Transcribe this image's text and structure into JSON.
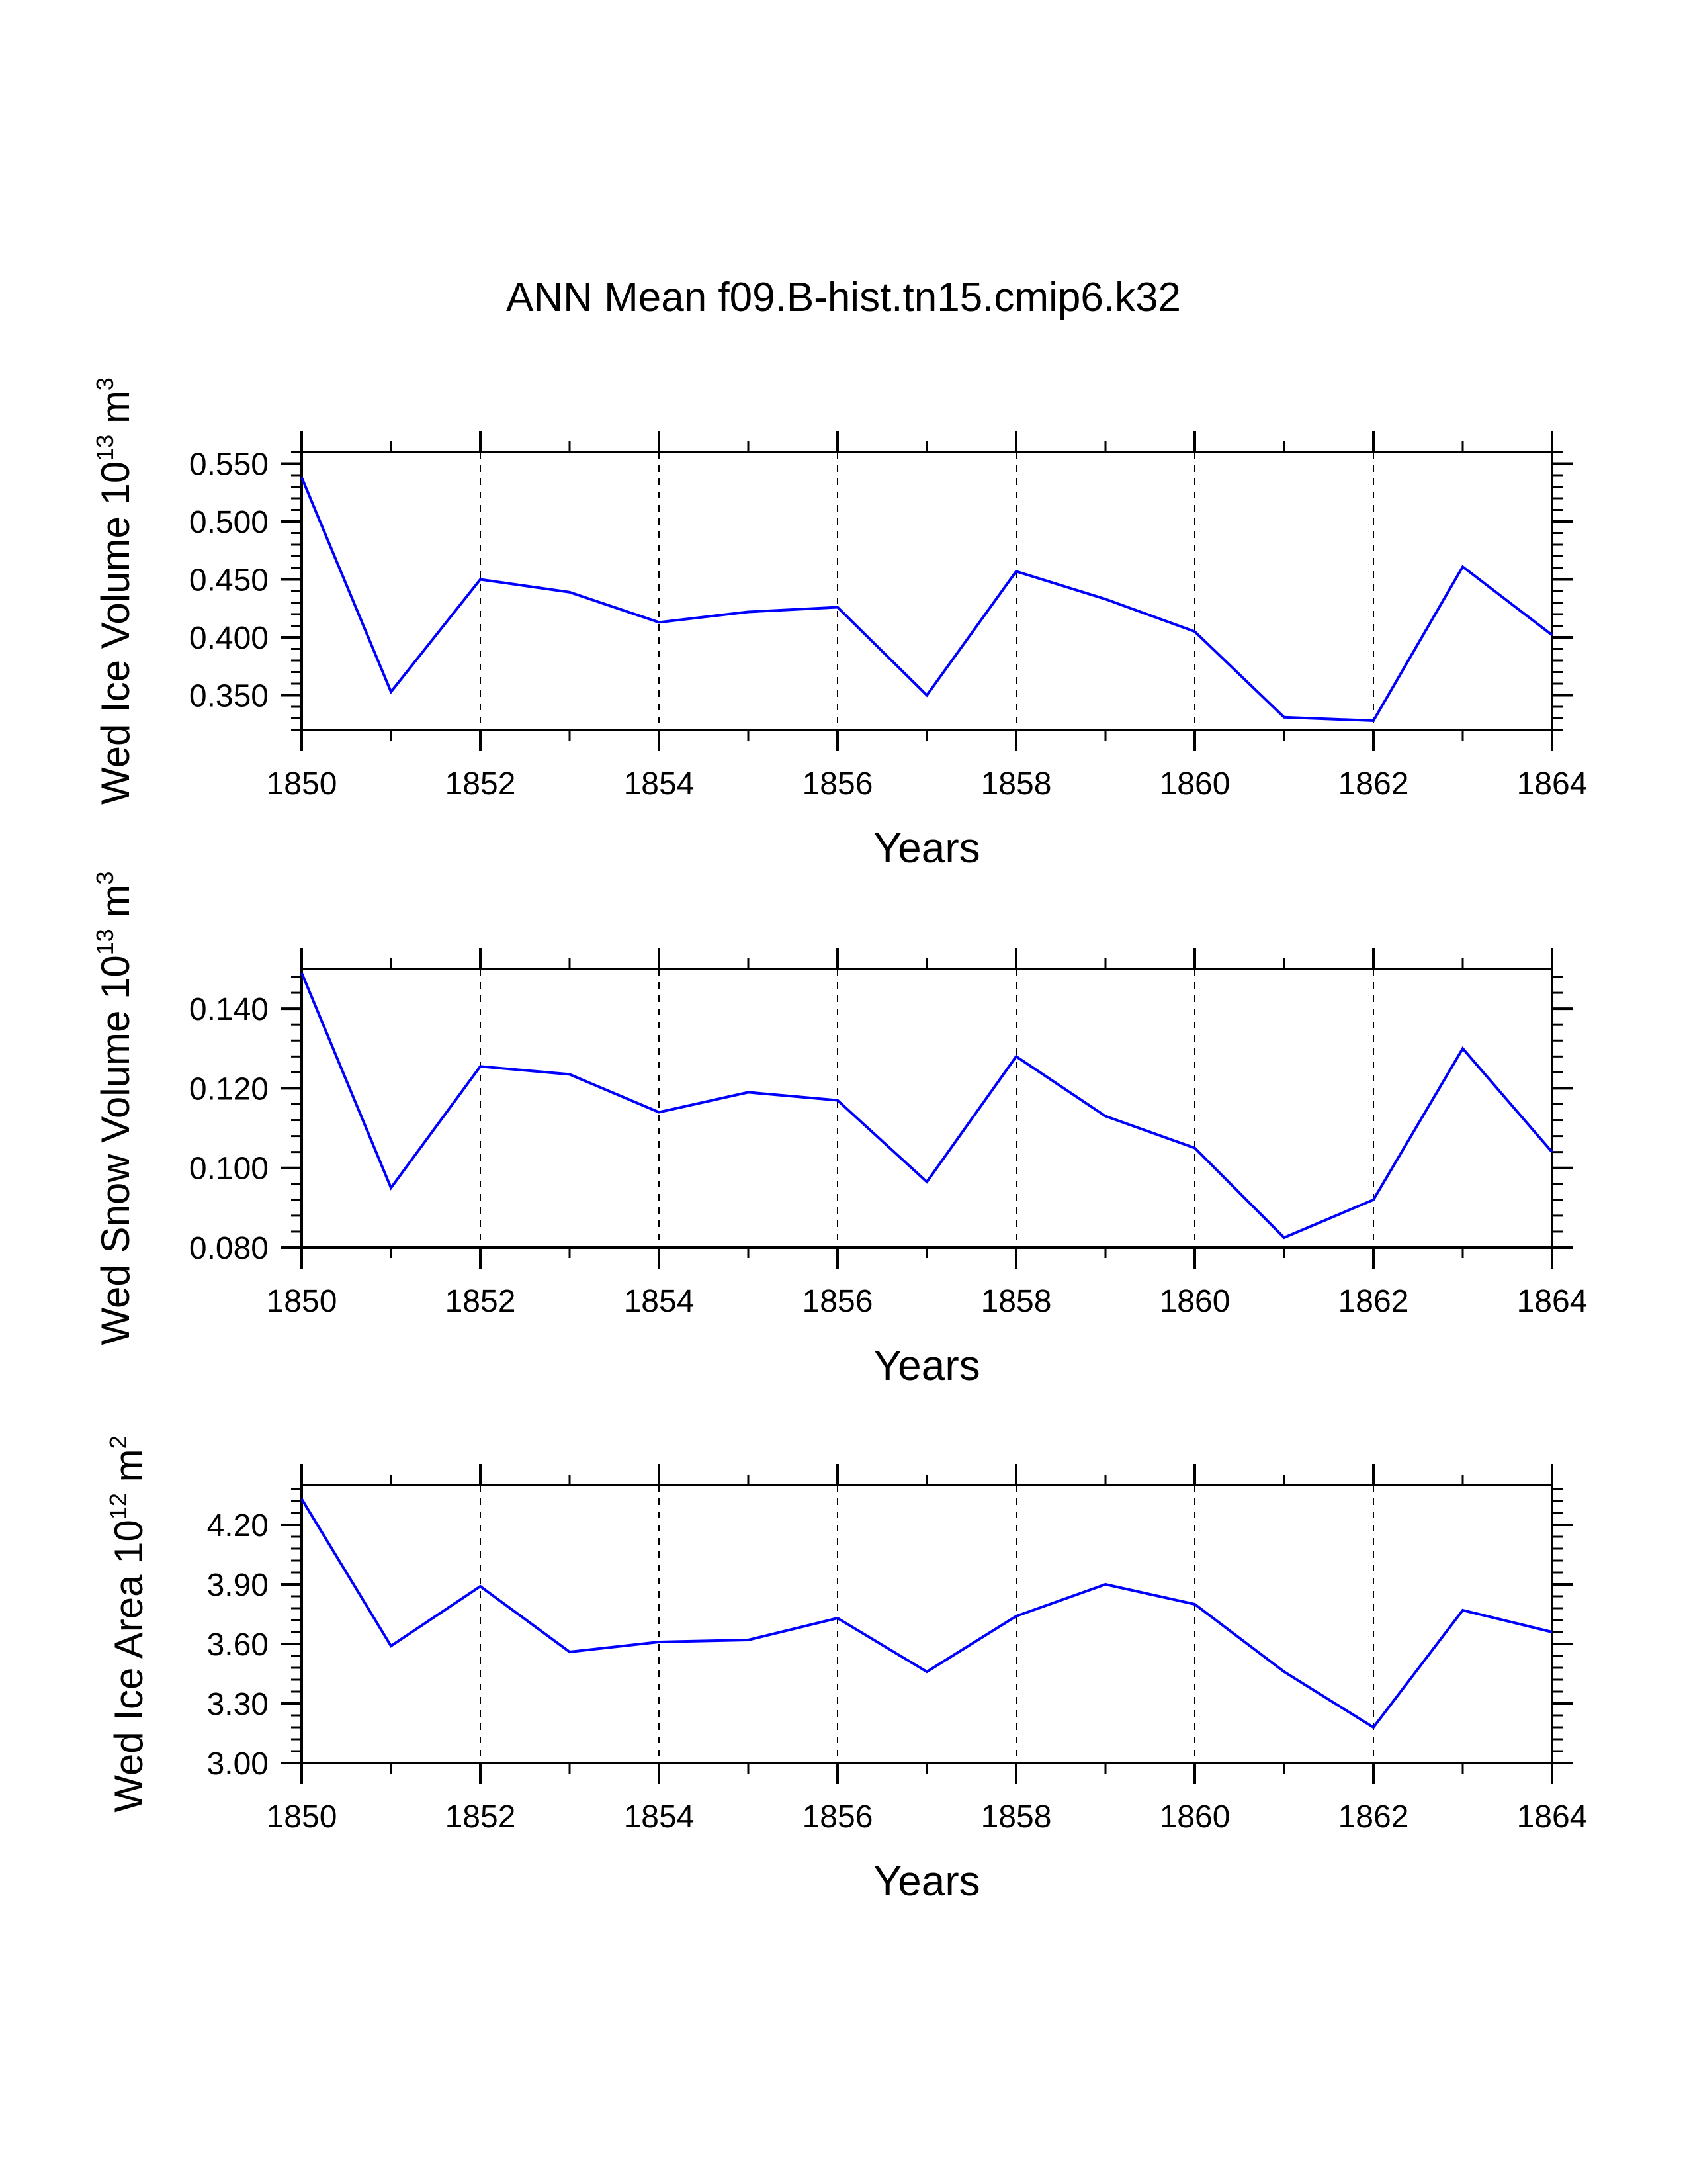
{
  "page_title": "ANN Mean f09.B-hist.tn15.cmip6.k32",
  "chart_data": [
    {
      "type": "line",
      "ylabel": {
        "prefix": "Wed Ice Volume 10",
        "exponent": "13",
        "unit": " m",
        "unit_exponent": "3"
      },
      "xlabel": "Years",
      "x": [
        1850,
        1851,
        1852,
        1853,
        1854,
        1855,
        1856,
        1857,
        1858,
        1859,
        1860,
        1861,
        1862,
        1863,
        1864
      ],
      "values": [
        0.538,
        0.353,
        0.45,
        0.439,
        0.413,
        0.422,
        0.426,
        0.35,
        0.457,
        0.433,
        0.405,
        0.331,
        0.328,
        0.461,
        0.402
      ],
      "xlim": [
        1850,
        1864
      ],
      "ylim": [
        0.32,
        0.56
      ],
      "yticks": [
        0.35,
        0.4,
        0.45,
        0.5,
        0.55
      ],
      "ytick_labels": [
        "0.350",
        "0.400",
        "0.450",
        "0.500",
        "0.550"
      ],
      "xticks": [
        1850,
        1852,
        1854,
        1856,
        1858,
        1860,
        1862,
        1864
      ],
      "xtick_labels": [
        "1850",
        "1852",
        "1854",
        "1856",
        "1858",
        "1860",
        "1862",
        "1864"
      ],
      "grid": "vertical dashed at labeled x ticks",
      "line_color": "#0000ff"
    },
    {
      "type": "line",
      "ylabel": {
        "prefix": "Wed Snow Volume 10",
        "exponent": "13",
        "unit": " m",
        "unit_exponent": "3"
      },
      "xlabel": "Years",
      "x": [
        1850,
        1851,
        1852,
        1853,
        1854,
        1855,
        1856,
        1857,
        1858,
        1859,
        1860,
        1861,
        1862,
        1863,
        1864
      ],
      "values": [
        0.149,
        0.095,
        0.1255,
        0.1235,
        0.114,
        0.119,
        0.117,
        0.0965,
        0.128,
        0.113,
        0.105,
        0.0825,
        0.092,
        0.13,
        0.104
      ],
      "xlim": [
        1850,
        1864
      ],
      "ylim": [
        0.08,
        0.15
      ],
      "yticks": [
        0.08,
        0.1,
        0.12,
        0.14
      ],
      "ytick_labels": [
        "0.080",
        "0.100",
        "0.120",
        "0.140"
      ],
      "xticks": [
        1850,
        1852,
        1854,
        1856,
        1858,
        1860,
        1862,
        1864
      ],
      "xtick_labels": [
        "1850",
        "1852",
        "1854",
        "1856",
        "1858",
        "1860",
        "1862",
        "1864"
      ],
      "grid": "vertical dashed at labeled x ticks",
      "line_color": "#0000ff"
    },
    {
      "type": "line",
      "ylabel": {
        "prefix": "Wed Ice Area 10",
        "exponent": "12",
        "unit": " m",
        "unit_exponent": "2"
      },
      "xlabel": "Years",
      "x": [
        1850,
        1851,
        1852,
        1853,
        1854,
        1855,
        1856,
        1857,
        1858,
        1859,
        1860,
        1861,
        1862,
        1863,
        1864
      ],
      "values": [
        4.33,
        3.59,
        3.89,
        3.56,
        3.61,
        3.62,
        3.73,
        3.46,
        3.74,
        3.9,
        3.8,
        3.46,
        3.18,
        3.77,
        3.66
      ],
      "xlim": [
        1850,
        1864
      ],
      "ylim": [
        3.0,
        4.4
      ],
      "yticks": [
        3.0,
        3.3,
        3.6,
        3.9,
        4.2
      ],
      "ytick_labels": [
        "3.00",
        "3.30",
        "3.60",
        "3.90",
        "4.20"
      ],
      "xticks": [
        1850,
        1852,
        1854,
        1856,
        1858,
        1860,
        1862,
        1864
      ],
      "xtick_labels": [
        "1850",
        "1852",
        "1854",
        "1856",
        "1858",
        "1860",
        "1862",
        "1864"
      ],
      "grid": "vertical dashed at labeled x ticks",
      "line_color": "#0000ff"
    }
  ]
}
